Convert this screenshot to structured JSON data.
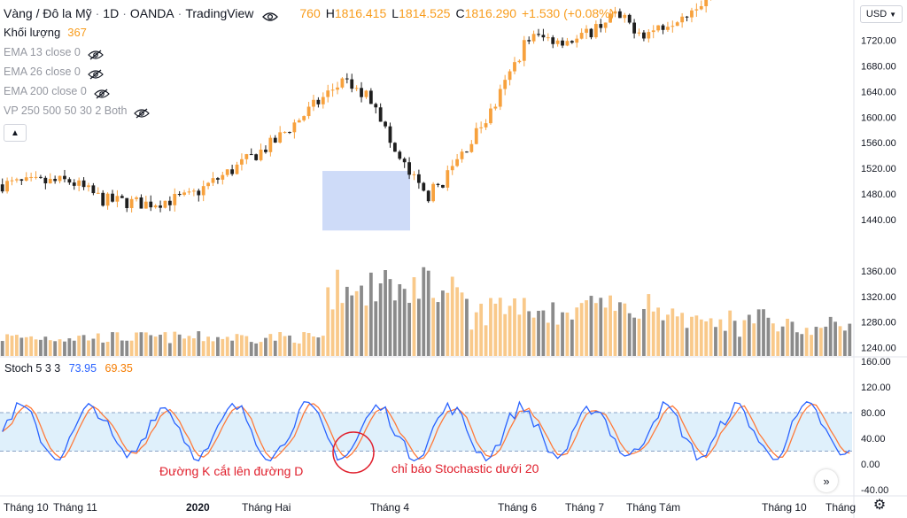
{
  "header": {
    "symbol": "Vàng / Đô la Mỹ",
    "interval": "1D",
    "exchange": "OANDA",
    "source": "TradingView",
    "open_partial": "760",
    "high_label": "H",
    "high": "1816.415",
    "low_label": "L",
    "low": "1814.525",
    "close_label": "C",
    "close": "1816.290",
    "change": "+1.530 (+0.08%)"
  },
  "volume": {
    "label": "Khối lượng",
    "value": "367"
  },
  "indicators": [
    {
      "label": "EMA 13 close 0"
    },
    {
      "label": "EMA 26 close 0"
    },
    {
      "label": "EMA 200 close 0"
    },
    {
      "label": "VP 250 500 50 30 2 Both"
    }
  ],
  "currency": "USD",
  "stochastic": {
    "label": "Stoch 5 3 3",
    "k_value": "73.95",
    "d_value": "69.35"
  },
  "annotations": {
    "k_cross_d": "Đường K cắt lên đường D",
    "stoch_below_20": "chỉ báo Stochastic dưới 20"
  },
  "colors": {
    "up": "#f7a13d",
    "down": "#1e1e1e",
    "vol_up": "#f9c98a",
    "vol_down": "#8b8b8b",
    "k_line": "#2962ff",
    "d_line": "#ff7a3a",
    "stoch_band": "#dff0fb",
    "highlight": "#c5d5f7",
    "annotation": "#e0202d"
  },
  "icons": {
    "visibility": "eye-slash-icon",
    "scroll": "double-chevron-right-icon",
    "settings": "gear-icon"
  },
  "chart_data": [
    {
      "type": "candlestick",
      "y_ticks": [
        1440,
        1480,
        1520,
        1560,
        1600,
        1640,
        1680,
        1720
      ],
      "ylim": [
        1400,
        1820
      ],
      "x_ticks": [
        "Tháng 10",
        "Tháng 11",
        "2020",
        "Tháng Hai",
        "Tháng 4",
        "Tháng 6",
        "Tháng 7",
        "Tháng Tám",
        "Tháng 10",
        "Tháng"
      ],
      "price_path": [
        {
          "t": 0,
          "p": 1495
        },
        {
          "t": 0.08,
          "p": 1500
        },
        {
          "t": 0.12,
          "p": 1470
        },
        {
          "t": 0.17,
          "p": 1465
        },
        {
          "t": 0.22,
          "p": 1475
        },
        {
          "t": 0.28,
          "p": 1525
        },
        {
          "t": 0.32,
          "p": 1560
        },
        {
          "t": 0.34,
          "p": 1585
        },
        {
          "t": 0.4,
          "p": 1655
        },
        {
          "t": 0.44,
          "p": 1625
        },
        {
          "t": 0.46,
          "p": 1550
        },
        {
          "t": 0.5,
          "p": 1475
        },
        {
          "t": 0.52,
          "p": 1500
        },
        {
          "t": 0.58,
          "p": 1615
        },
        {
          "t": 0.62,
          "p": 1725
        },
        {
          "t": 0.68,
          "p": 1720
        },
        {
          "t": 0.72,
          "p": 1760
        },
        {
          "t": 0.76,
          "p": 1730
        },
        {
          "t": 0.8,
          "p": 1760
        },
        {
          "t": 0.86,
          "p": 1810
        },
        {
          "t": 1,
          "p": 1830
        }
      ],
      "highlight_box": {
        "price_top": 1516,
        "price_bottom": 1423
      }
    },
    {
      "type": "bar",
      "series": [
        {
          "name": "Khối lượng"
        }
      ],
      "note_ticks": [
        1240,
        1280,
        1320,
        1360
      ]
    },
    {
      "type": "line",
      "title": "Stoch 5 3 3",
      "y_ticks": [
        -40,
        0,
        40,
        80,
        120,
        160
      ],
      "ylim": [
        -45,
        165
      ],
      "bands": [
        20,
        80
      ],
      "series": [
        {
          "name": "%K"
        },
        {
          "name": "%D"
        }
      ]
    }
  ]
}
